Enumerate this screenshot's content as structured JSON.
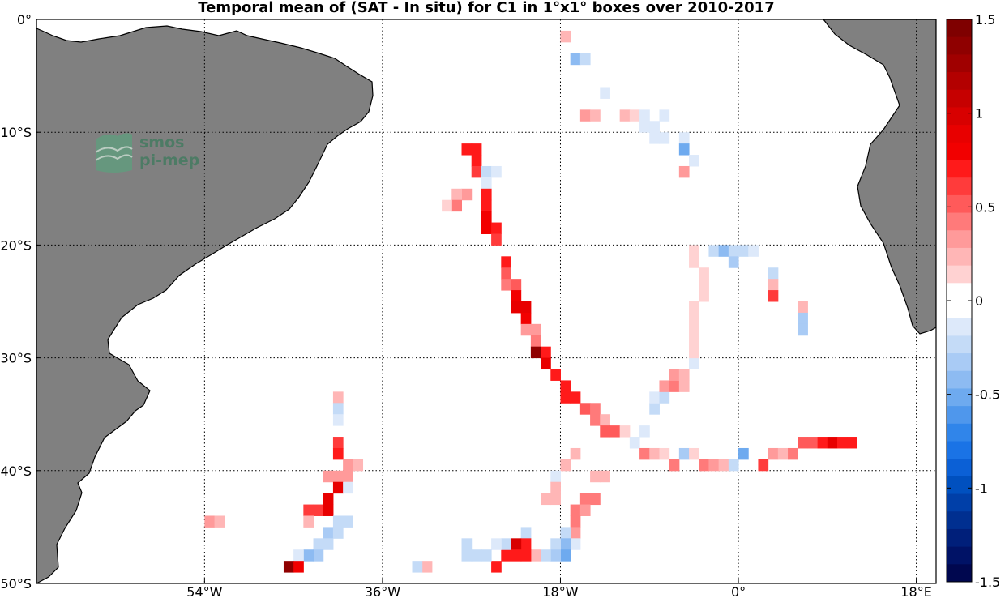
{
  "title": "Temporal mean of (SAT - In situ) for C1 in 1°x1° boxes over 2010-2017",
  "logo": {
    "line1": "smos",
    "line2": "pi-mep"
  },
  "map": {
    "lon_range": [
      -71,
      20
    ],
    "lat_range": [
      -50,
      0
    ],
    "lat_ticks": [
      {
        "v": 0,
        "label": "0°"
      },
      {
        "v": -10,
        "label": "10°S"
      },
      {
        "v": -20,
        "label": "20°S"
      },
      {
        "v": -30,
        "label": "30°S"
      },
      {
        "v": -40,
        "label": "40°S"
      },
      {
        "v": -50,
        "label": "50°S"
      }
    ],
    "lon_ticks": [
      {
        "v": -54,
        "label": "54°W"
      },
      {
        "v": -36,
        "label": "36°W"
      },
      {
        "v": -18,
        "label": "18°W"
      },
      {
        "v": 0,
        "label": "0°"
      },
      {
        "v": 18,
        "label": "18°E"
      }
    ],
    "land_color": "#808080",
    "ocean_color": "#ffffff"
  },
  "colorbar": {
    "range": [
      -1.5,
      1.5
    ],
    "ticks": [
      "1.5",
      "1",
      "0.5",
      "0",
      "-0.5",
      "-1",
      "-1.5"
    ],
    "tick_values": [
      1.5,
      1,
      0.5,
      0,
      -0.5,
      -1,
      -1.5
    ],
    "colors_top_to_bottom": [
      "#7f0000",
      "#8f0000",
      "#a00000",
      "#b30000",
      "#c60000",
      "#d80000",
      "#e80000",
      "#f20000",
      "#ff1a1a",
      "#ff3b3b",
      "#ff5a5a",
      "#ff7a7a",
      "#ff9a9a",
      "#ffb6b6",
      "#ffd2d2",
      "#ffffff",
      "#ffffff",
      "#dde9fa",
      "#c4dbf7",
      "#a9cbf5",
      "#8dbbf2",
      "#6eaaef",
      "#4f97ec",
      "#3085ea",
      "#1a73e6",
      "#0b60d6",
      "#0050bf",
      "#003fa8",
      "#002f90",
      "#001f7a",
      "#001266",
      "#00074f"
    ]
  },
  "cells": [
    [
      -18,
      -1,
      0.2
    ],
    [
      -17,
      -3,
      -0.45
    ],
    [
      -16,
      -3,
      -0.2
    ],
    [
      -14,
      -6,
      -0.1
    ],
    [
      -16,
      -8,
      0.3
    ],
    [
      -15,
      -8,
      0.2
    ],
    [
      -12,
      -8,
      0.2
    ],
    [
      -11,
      -8,
      0.15
    ],
    [
      -10,
      -8,
      -0.15
    ],
    [
      -9,
      -9,
      -0.1
    ],
    [
      -8,
      -8,
      -0.15
    ],
    [
      -10,
      -9,
      -0.1
    ],
    [
      -9,
      -10,
      -0.1
    ],
    [
      -8,
      -10,
      -0.15
    ],
    [
      -6,
      -10,
      -0.1
    ],
    [
      -6,
      -11,
      -0.5
    ],
    [
      -5,
      -12,
      -0.1
    ],
    [
      -6,
      -13,
      0.3
    ],
    [
      -28,
      -11,
      0.7
    ],
    [
      -27,
      -11,
      0.7
    ],
    [
      -27,
      -12,
      0.7
    ],
    [
      -27,
      -13,
      0.65
    ],
    [
      -26,
      -13,
      -0.2
    ],
    [
      -25,
      -13,
      -0.15
    ],
    [
      -26,
      -14,
      -0.15
    ],
    [
      -26,
      -15,
      0.7
    ],
    [
      -28,
      -15,
      0.35
    ],
    [
      -29,
      -15,
      0.25
    ],
    [
      -29,
      -16,
      0.4
    ],
    [
      -30,
      -16,
      0.15
    ],
    [
      -26,
      -16,
      0.75
    ],
    [
      -26,
      -17,
      0.8
    ],
    [
      -26,
      -18,
      0.8
    ],
    [
      -25,
      -18,
      0.7
    ],
    [
      -25,
      -19,
      0.6
    ],
    [
      -24,
      -21,
      0.75
    ],
    [
      -24,
      -22,
      0.5
    ],
    [
      -24,
      -23,
      0.45
    ],
    [
      -23,
      -23,
      0.55
    ],
    [
      -23,
      -24,
      0.8
    ],
    [
      -23,
      -25,
      0.85
    ],
    [
      -22,
      -25,
      0.85
    ],
    [
      -22,
      -26,
      0.8
    ],
    [
      -22,
      -27,
      0.3
    ],
    [
      -21,
      -27,
      0.35
    ],
    [
      -21,
      -28,
      0.4
    ],
    [
      -21,
      -29,
      1.35
    ],
    [
      -20,
      -29,
      0.75
    ],
    [
      -20,
      -30,
      0.85
    ],
    [
      -19,
      -31,
      0.75
    ],
    [
      -18,
      -32,
      0.7
    ],
    [
      -18,
      -33,
      0.7
    ],
    [
      -17,
      -33,
      0.7
    ],
    [
      -16,
      -34,
      0.55
    ],
    [
      -15,
      -34,
      0.45
    ],
    [
      -15,
      -35,
      0.4
    ],
    [
      -14,
      -35,
      0.25
    ],
    [
      -14,
      -36,
      0.55
    ],
    [
      -13,
      -36,
      0.55
    ],
    [
      -12,
      -36,
      0.15
    ],
    [
      -11,
      -37,
      -0.15
    ],
    [
      -10,
      -36,
      -0.15
    ],
    [
      -9,
      -34,
      -0.2
    ],
    [
      -9,
      -33,
      -0.15
    ],
    [
      -8,
      -33,
      -0.2
    ],
    [
      -8,
      -32,
      0.35
    ],
    [
      -7,
      -32,
      0.4
    ],
    [
      -6,
      -32,
      0.2
    ],
    [
      -7,
      -31,
      0.35
    ],
    [
      -6,
      -31,
      0.25
    ],
    [
      -5,
      -30,
      -0.15
    ],
    [
      -10,
      -38,
      0.4
    ],
    [
      -9,
      -38,
      0.2
    ],
    [
      -8,
      -38,
      0.15
    ],
    [
      -7,
      -39,
      0.4
    ],
    [
      -6,
      -38,
      -0.3
    ],
    [
      -5,
      -38,
      0.1
    ],
    [
      -4,
      -39,
      0.4
    ],
    [
      -3,
      -39,
      0.3
    ],
    [
      -2,
      -39,
      0.2
    ],
    [
      -1,
      -39,
      -0.2
    ],
    [
      0,
      -38,
      -0.5
    ],
    [
      2,
      -39,
      0.6
    ],
    [
      3,
      -38,
      0.3
    ],
    [
      4,
      -38,
      0.25
    ],
    [
      5,
      -38,
      0.4
    ],
    [
      6,
      -37,
      0.55
    ],
    [
      7,
      -37,
      0.55
    ],
    [
      8,
      -37,
      0.7
    ],
    [
      9,
      -37,
      0.85
    ],
    [
      10,
      -37,
      0.7
    ],
    [
      11,
      -37,
      0.7
    ],
    [
      -5,
      -20,
      0.15
    ],
    [
      -5,
      -21,
      0.15
    ],
    [
      -4,
      -22,
      0.15
    ],
    [
      -4,
      -23,
      0.15
    ],
    [
      -4,
      -24,
      0.15
    ],
    [
      -5,
      -25,
      0.15
    ],
    [
      -5,
      -26,
      0.15
    ],
    [
      -5,
      -27,
      0.15
    ],
    [
      -5,
      -28,
      0.15
    ],
    [
      -5,
      -29,
      0.15
    ],
    [
      -3,
      -20,
      -0.2
    ],
    [
      -2,
      -20,
      -0.4
    ],
    [
      -1,
      -20,
      -0.2
    ],
    [
      -1,
      -21,
      -0.3
    ],
    [
      0,
      -20,
      -0.2
    ],
    [
      1,
      -20,
      -0.1
    ],
    [
      3,
      -22,
      -0.2
    ],
    [
      3,
      -23,
      0.2
    ],
    [
      3,
      -24,
      0.6
    ],
    [
      6,
      -25,
      0.2
    ],
    [
      6,
      -26,
      -0.35
    ],
    [
      6,
      -27,
      -0.35
    ],
    [
      -18,
      -39,
      0.2
    ],
    [
      -17,
      -38,
      0.2
    ],
    [
      -15,
      -40,
      0.2
    ],
    [
      -14,
      -40,
      0.2
    ],
    [
      -19,
      -40,
      -0.1
    ],
    [
      -19,
      -41,
      0.2
    ],
    [
      -20,
      -42,
      0.2
    ],
    [
      -19,
      -42,
      0.2
    ],
    [
      -16,
      -42,
      0.45
    ],
    [
      -15,
      -42,
      0.4
    ],
    [
      -17,
      -43,
      0.45
    ],
    [
      -16,
      -43,
      0.35
    ],
    [
      -17,
      -44,
      0.45
    ],
    [
      -17,
      -45,
      0.3
    ],
    [
      -17,
      -46,
      -0.15
    ],
    [
      -18,
      -45,
      -0.2
    ],
    [
      -18,
      -46,
      -0.45
    ],
    [
      -18,
      -47,
      -0.5
    ],
    [
      -19,
      -46,
      -0.2
    ],
    [
      -19,
      -47,
      -0.3
    ],
    [
      -20,
      -47,
      -0.2
    ],
    [
      -21,
      -47,
      0.2
    ],
    [
      -22,
      -45,
      -0.2
    ],
    [
      -22,
      -46,
      0.7
    ],
    [
      -23,
      -46,
      1.0
    ],
    [
      -22,
      -47,
      0.7
    ],
    [
      -23,
      -47,
      0.7
    ],
    [
      -24,
      -47,
      0.7
    ],
    [
      -24,
      -46,
      -0.2
    ],
    [
      -25,
      -46,
      -0.1
    ],
    [
      -25,
      -48,
      0.7
    ],
    [
      -26,
      -47,
      -0.2
    ],
    [
      -27,
      -47,
      -0.25
    ],
    [
      -28,
      -46,
      -0.2
    ],
    [
      -28,
      -47,
      -0.2
    ],
    [
      -32,
      -48,
      0.2
    ],
    [
      -33,
      -48,
      -0.2
    ],
    [
      -41,
      -33,
      0.2
    ],
    [
      -41,
      -34,
      -0.2
    ],
    [
      -41,
      -35,
      -0.1
    ],
    [
      -41,
      -37,
      0.65
    ],
    [
      -41,
      -38,
      0.75
    ],
    [
      -40,
      -39,
      0.3
    ],
    [
      -39,
      -39,
      0.25
    ],
    [
      -42,
      -40,
      0.3
    ],
    [
      -41,
      -40,
      0.3
    ],
    [
      -40,
      -40,
      0.3
    ],
    [
      -41,
      -41,
      0.85
    ],
    [
      -40,
      -41,
      -0.15
    ],
    [
      -42,
      -42,
      0.9
    ],
    [
      -43,
      -43,
      0.6
    ],
    [
      -42,
      -43,
      0.9
    ],
    [
      -44,
      -43,
      0.6
    ],
    [
      -41,
      -44,
      -0.2
    ],
    [
      -40,
      -44,
      -0.2
    ],
    [
      -44,
      -44,
      0.25
    ],
    [
      -42,
      -45,
      -0.3
    ],
    [
      -41,
      -45,
      -0.25
    ],
    [
      -42,
      -46,
      -0.25
    ],
    [
      -43,
      -46,
      -0.2
    ],
    [
      -43,
      -47,
      -0.3
    ],
    [
      -44,
      -47,
      -0.45
    ],
    [
      -45,
      -47,
      -0.1
    ],
    [
      -46,
      -48,
      1.35
    ],
    [
      -45,
      -48,
      0.8
    ],
    [
      -54,
      -44,
      0.3
    ],
    [
      -53,
      -44,
      0.2
    ]
  ]
}
